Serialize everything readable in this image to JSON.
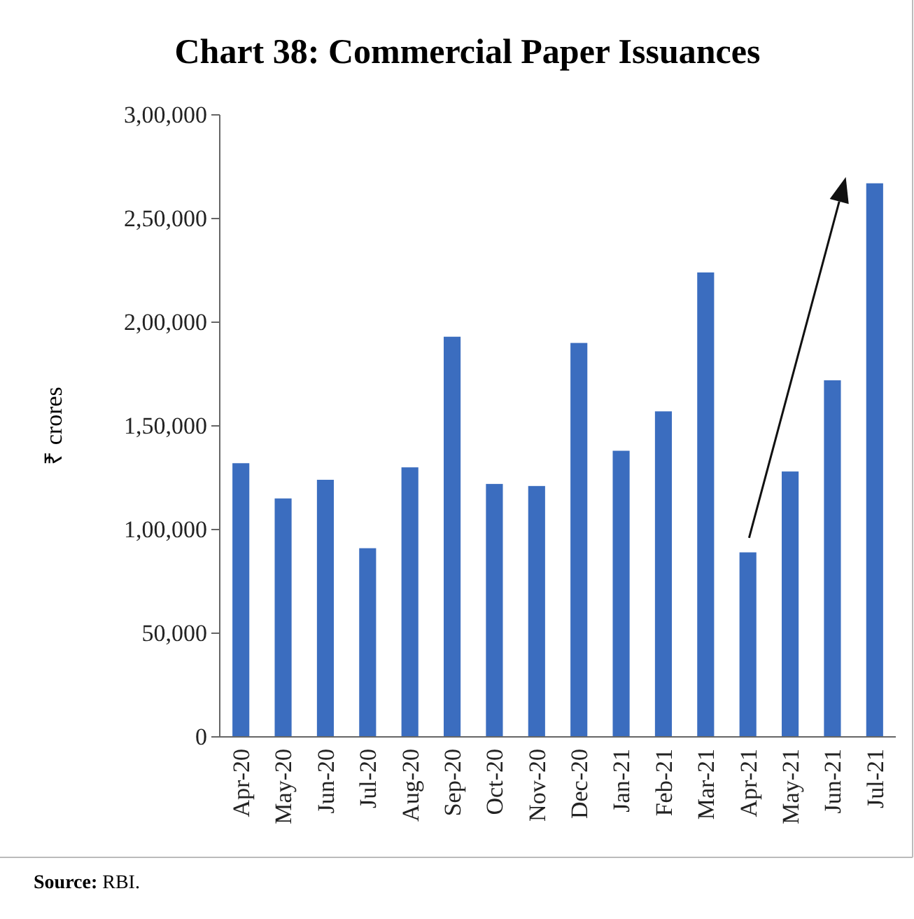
{
  "chart_data": {
    "type": "bar",
    "title": "Chart 38: Commercial Paper Issuances",
    "ylabel": "₹ crores",
    "categories": [
      "Apr-20",
      "May-20",
      "Jun-20",
      "Jul-20",
      "Aug-20",
      "Sep-20",
      "Oct-20",
      "Nov-20",
      "Dec-20",
      "Jan-21",
      "Feb-21",
      "Mar-21",
      "Apr-21",
      "May-21",
      "Jun-21",
      "Jul-21"
    ],
    "values": [
      132000,
      115000,
      124000,
      91000,
      130000,
      193000,
      122000,
      121000,
      190000,
      138000,
      157000,
      224000,
      89000,
      128000,
      172000,
      267000
    ],
    "color": "#3b6dbf",
    "ylim": [
      0,
      300000
    ],
    "yticks": [
      0,
      {
        "value": 50000,
        "label": "50,000"
      },
      {
        "value": 100000,
        "label": "1,00,000"
      },
      {
        "value": 150000,
        "label": "1,50,000"
      },
      {
        "value": 200000,
        "label": "2,00,000"
      },
      {
        "value": 250000,
        "label": "2,50,000"
      },
      {
        "value": 300000,
        "label": "3,00,000"
      }
    ],
    "grid": false,
    "annotations": [
      "Source: RBI."
    ]
  }
}
